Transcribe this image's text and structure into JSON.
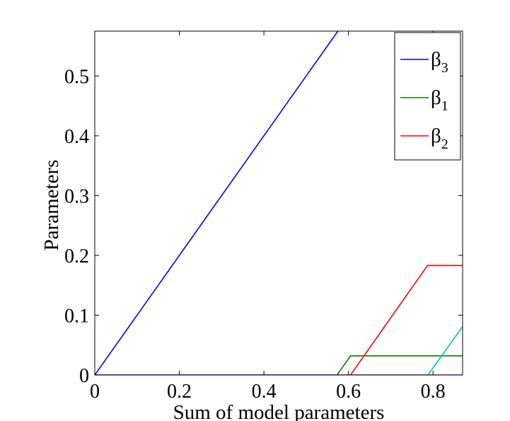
{
  "chart_data": {
    "type": "line",
    "xlabel": "Sum of model parameters",
    "ylabel": "Parameters",
    "xlim": [
      0,
      0.87
    ],
    "ylim": [
      0,
      0.575
    ],
    "x_ticks": [
      {
        "value": 0,
        "label": "0"
      },
      {
        "value": 0.2,
        "label": "0.2"
      },
      {
        "value": 0.4,
        "label": "0.4"
      },
      {
        "value": 0.6,
        "label": "0.6"
      },
      {
        "value": 0.8,
        "label": "0.8"
      }
    ],
    "y_ticks": [
      {
        "value": 0,
        "label": "0"
      },
      {
        "value": 0.1,
        "label": "0.1"
      },
      {
        "value": 0.2,
        "label": "0.2"
      },
      {
        "value": 0.3,
        "label": "0.3"
      },
      {
        "value": 0.4,
        "label": "0.4"
      },
      {
        "value": 0.5,
        "label": "0.5"
      }
    ],
    "grid": false,
    "legend_position": "top-right",
    "legend": [
      {
        "series": "beta3",
        "symbol": "β",
        "subscript": "3"
      },
      {
        "series": "beta1",
        "symbol": "β",
        "subscript": "1"
      },
      {
        "series": "beta2",
        "symbol": "β",
        "subscript": "2"
      }
    ],
    "series": [
      {
        "id": "beta3",
        "color": "#0000ff",
        "points": [
          [
            0,
            0
          ],
          [
            0.575,
            0.575
          ]
        ]
      },
      {
        "id": "beta1",
        "color": "#008000",
        "points": [
          [
            0,
            0
          ],
          [
            0.573,
            0
          ],
          [
            0.605,
            0.032
          ],
          [
            0.87,
            0.032
          ]
        ]
      },
      {
        "id": "beta2",
        "color": "#ff0000",
        "points": [
          [
            0,
            0
          ],
          [
            0.605,
            0
          ],
          [
            0.787,
            0.183
          ],
          [
            0.87,
            0.183
          ]
        ]
      },
      {
        "id": "cyan",
        "color": "#00bfbf",
        "points": [
          [
            0,
            0
          ],
          [
            0.788,
            0
          ],
          [
            0.87,
            0.081
          ]
        ]
      },
      {
        "id": "magenta",
        "color": "#bf00bf",
        "points": [
          [
            0,
            0
          ],
          [
            0.87,
            0
          ]
        ]
      }
    ]
  }
}
